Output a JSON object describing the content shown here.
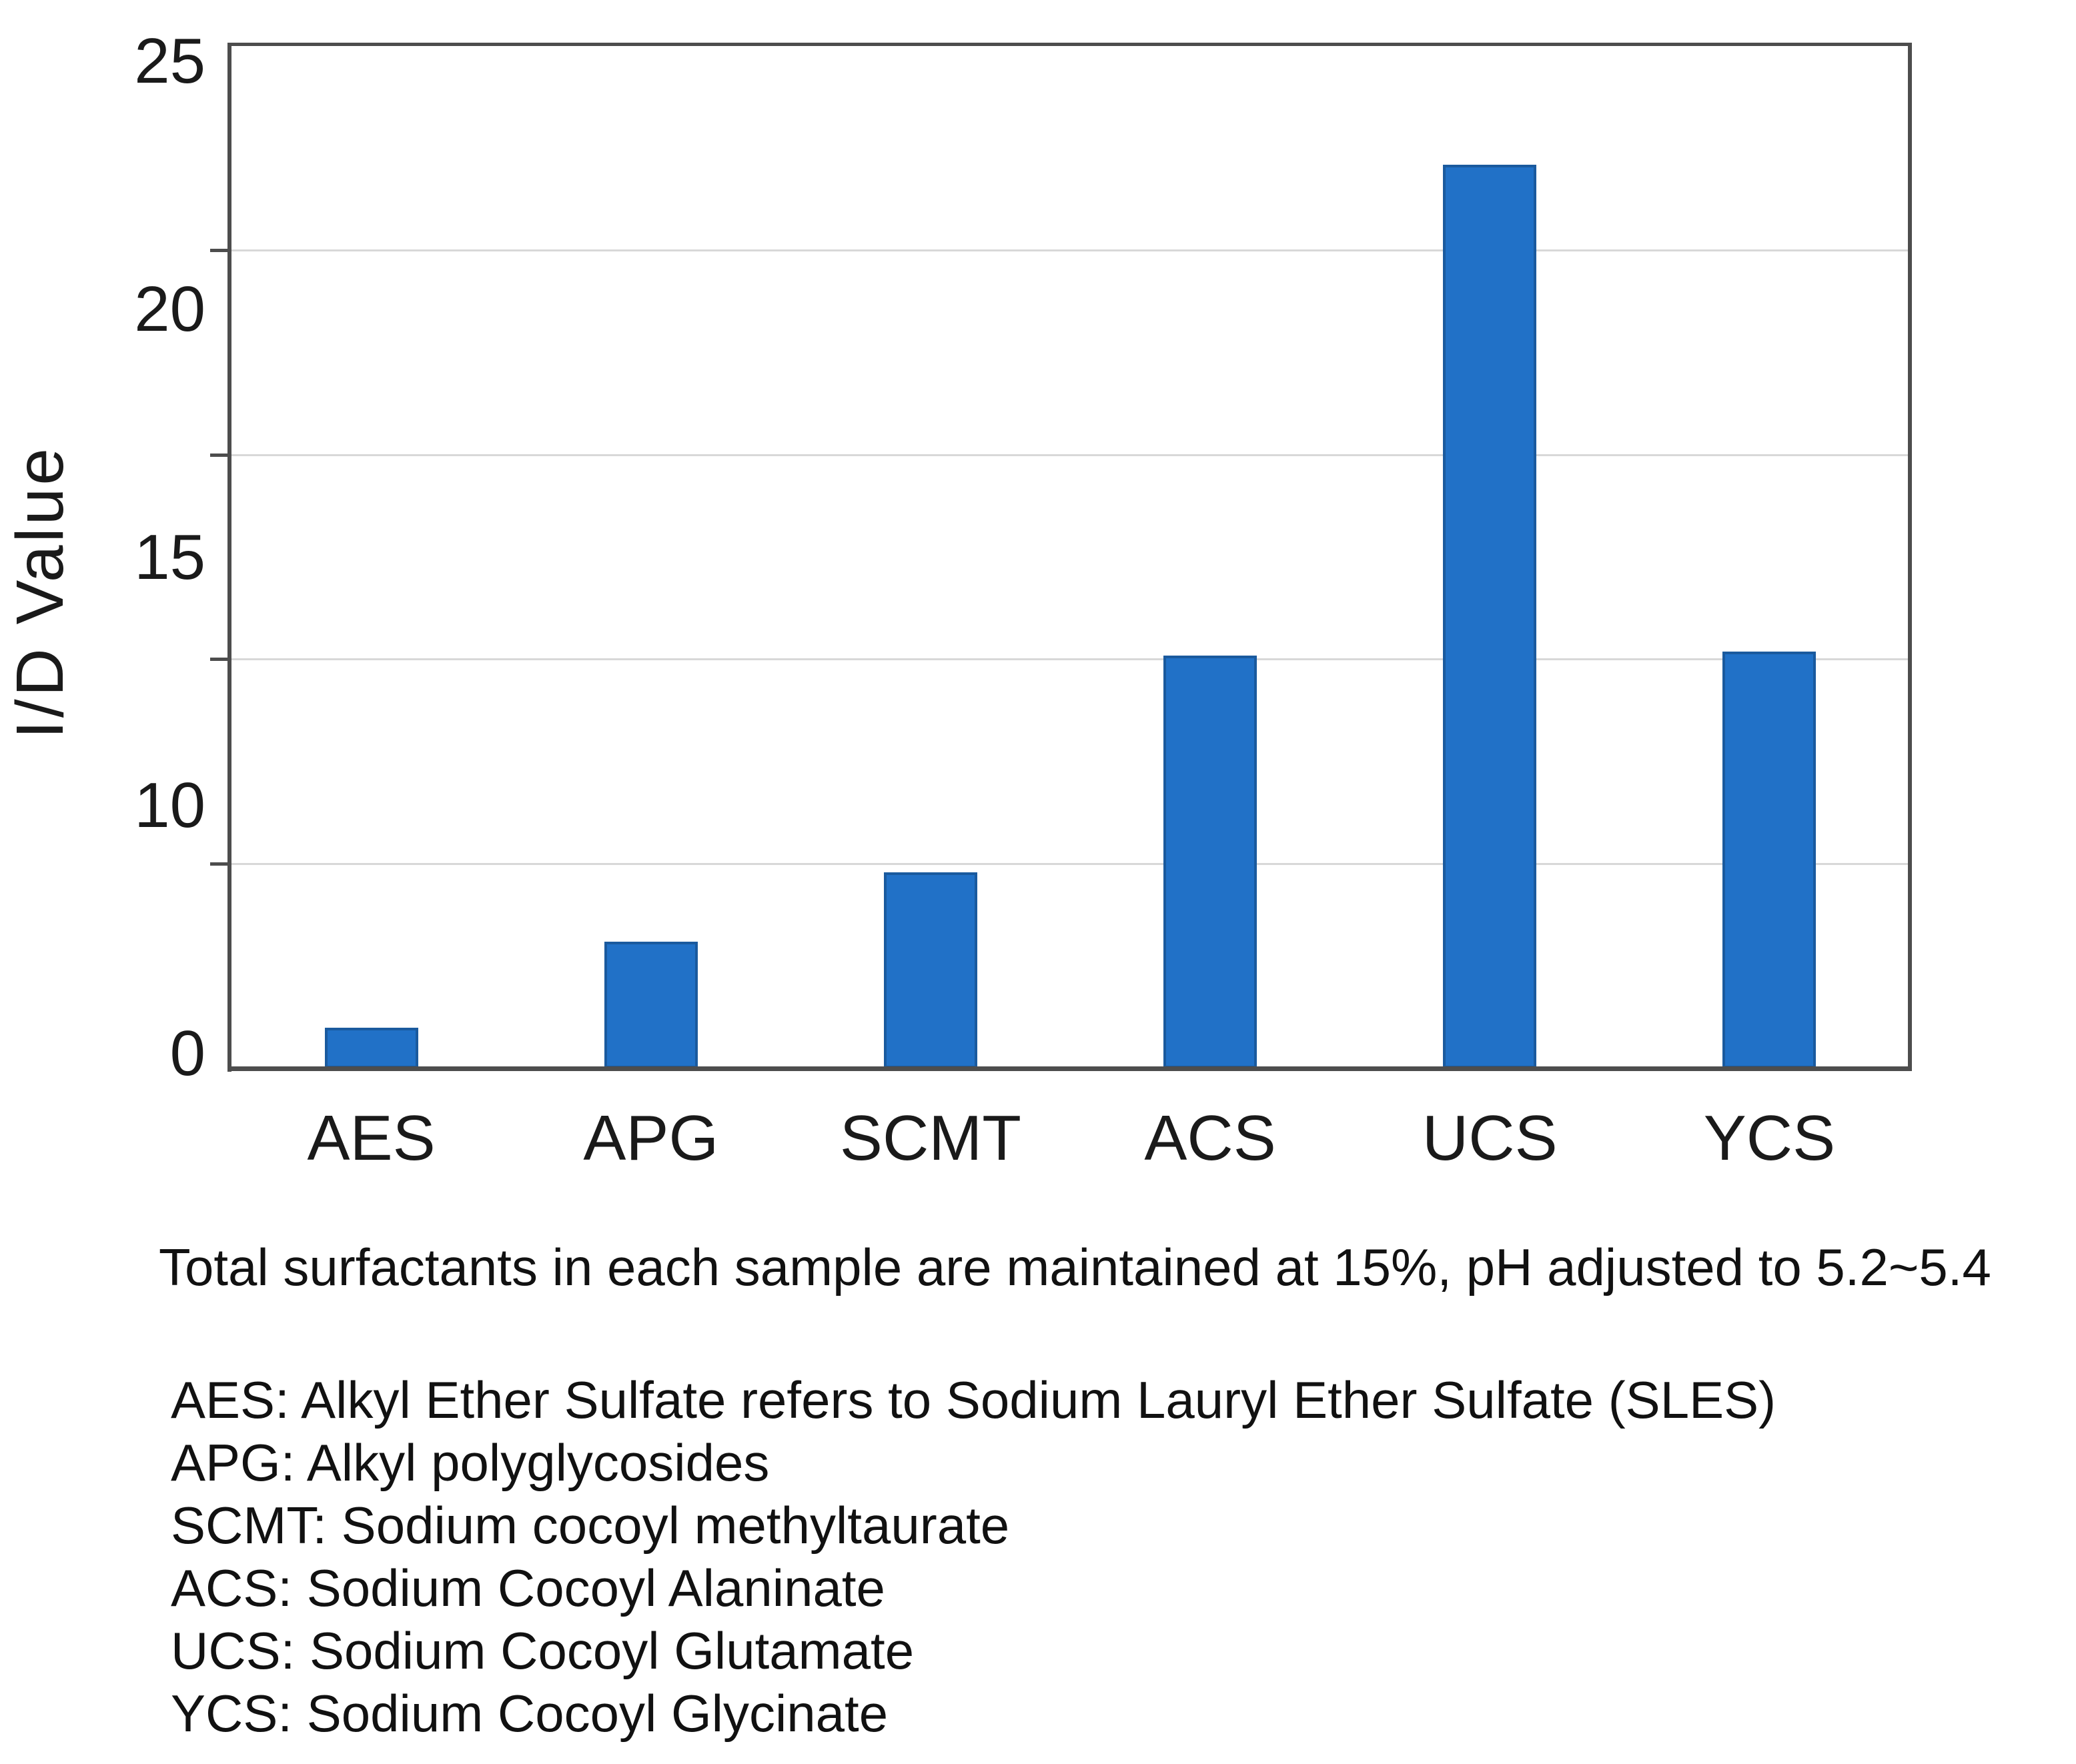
{
  "chart_data": {
    "type": "bar",
    "categories": [
      "AES",
      "APG",
      "SCMT",
      "ACS",
      "UCS",
      "YCS"
    ],
    "values": [
      1.0,
      3.1,
      4.8,
      10.1,
      22.1,
      10.2
    ],
    "title": "",
    "xlabel": "",
    "ylabel": "I/D Value",
    "ylim": [
      0,
      25
    ],
    "ytick_labels_top_to_bottom": [
      "25",
      "20",
      "15",
      "10",
      "0"
    ],
    "gridline_values": [
      20,
      15,
      10,
      5
    ],
    "grid": true,
    "legend_position": "none",
    "bar_color": "#2171c7",
    "bar_border_color": "#1a5a9e"
  },
  "caption": {
    "text": "Total surfactants in each sample are maintained at 15%, pH adjusted to 5.2~5.4"
  },
  "legend": {
    "lines": [
      "AES: Alkyl Ether Sulfate refers to Sodium Lauryl Ether Sulfate (SLES)",
      "APG: Alkyl polyglycosides",
      "SCMT: Sodium cocoyl methyltaurate",
      "ACS: Sodium Cocoyl Alaninate",
      "UCS: Sodium Cocoyl Glutamate",
      "YCS: Sodium Cocoyl Glycinate"
    ]
  },
  "colors": {
    "axis": "#4d4d4d",
    "gridline": "#d8d8d8",
    "text": "#1a1a1a"
  }
}
